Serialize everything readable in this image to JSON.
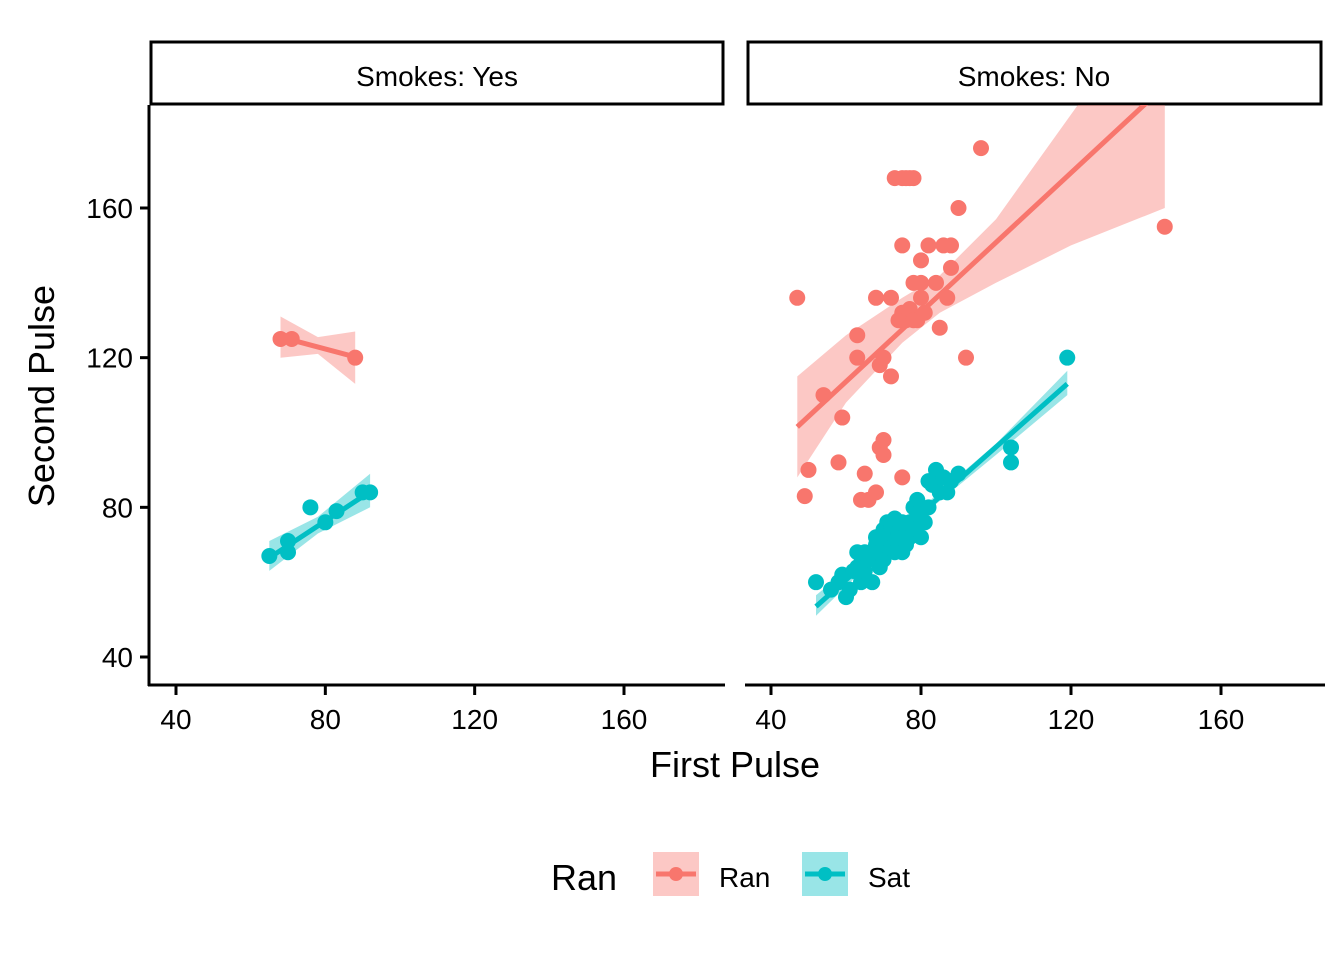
{
  "chart_data": {
    "type": "scatter",
    "xlabel": "First Pulse",
    "ylabel": "Second Pulse",
    "xlim": [
      33.5,
      184
    ],
    "ylim": [
      33.5,
      187
    ],
    "xticks": [
      40,
      80,
      120,
      160
    ],
    "yticks": [
      40,
      80,
      120,
      160
    ],
    "legend": {
      "title": "Ran",
      "position": "bottom",
      "entries": [
        {
          "label": "Ran",
          "color": "#F8766D"
        },
        {
          "label": "Sat",
          "color": "#00BFC4"
        }
      ]
    },
    "panels": [
      {
        "strip": "Smokes: Yes",
        "series": [
          {
            "group": "Ran",
            "color": "#F8766D",
            "points": [
              [
                68,
                125
              ],
              [
                71,
                125
              ],
              [
                88,
                120
              ]
            ],
            "fit": {
              "x": [
                68,
                88
              ],
              "y": [
                125.5,
                120.2
              ]
            },
            "band": {
              "x": [
                68,
                78,
                88
              ],
              "lower": [
                120.0,
                121.0,
                113.0
              ],
              "upper": [
                131.0,
                125.5,
                127.0
              ]
            }
          },
          {
            "group": "Sat",
            "color": "#00BFC4",
            "points": [
              [
                65,
                67
              ],
              [
                70,
                68
              ],
              [
                70,
                71
              ],
              [
                76,
                80
              ],
              [
                80,
                76
              ],
              [
                83,
                79
              ],
              [
                90,
                84
              ],
              [
                92,
                84
              ]
            ],
            "fit": {
              "x": [
                65,
                92
              ],
              "y": [
                66.5,
                84.2
              ]
            },
            "band": {
              "x": [
                65,
                78,
                92
              ],
              "lower": [
                63.0,
                73.0,
                80.0
              ],
              "upper": [
                71.0,
                77.5,
                89.0
              ]
            }
          }
        ]
      },
      {
        "strip": "Smokes: No",
        "series": [
          {
            "group": "Ran",
            "color": "#F8766D",
            "points": [
              [
                47,
                136
              ],
              [
                49,
                83
              ],
              [
                50,
                90
              ],
              [
                54,
                110
              ],
              [
                58,
                92
              ],
              [
                59,
                104
              ],
              [
                63,
                126
              ],
              [
                63,
                120
              ],
              [
                64,
                82
              ],
              [
                65,
                89
              ],
              [
                66,
                82
              ],
              [
                68,
                136
              ],
              [
                68,
                84
              ],
              [
                69,
                118
              ],
              [
                69,
                96
              ],
              [
                70,
                120
              ],
              [
                70,
                98
              ],
              [
                70,
                94
              ],
              [
                72,
                115
              ],
              [
                72,
                136
              ],
              [
                73,
                168
              ],
              [
                74,
                130
              ],
              [
                75,
                168
              ],
              [
                75,
                150
              ],
              [
                75,
                132
              ],
              [
                75,
                88
              ],
              [
                76,
                168
              ],
              [
                76,
                130
              ],
              [
                77,
                168
              ],
              [
                77,
                133
              ],
              [
                78,
                140
              ],
              [
                78,
                168
              ],
              [
                78,
                130
              ],
              [
                79,
                130
              ],
              [
                80,
                146
              ],
              [
                80,
                140
              ],
              [
                80,
                136
              ],
              [
                81,
                132
              ],
              [
                82,
                150
              ],
              [
                84,
                140
              ],
              [
                85,
                128
              ],
              [
                86,
                150
              ],
              [
                87,
                136
              ],
              [
                88,
                150
              ],
              [
                88,
                144
              ],
              [
                90,
                160
              ],
              [
                92,
                120
              ],
              [
                96,
                176
              ],
              [
                145,
                155
              ]
            ],
            "fit": {
              "x": [
                47,
                140
              ],
              "y": [
                101.5,
                188.0
              ]
            },
            "band": {
              "x": [
                47,
                60,
                75,
                85,
                100,
                120,
                145
              ],
              "lower": [
                88.0,
                108.0,
                124.0,
                132.0,
                140.0,
                150.0,
                160.0
              ],
              "upper": [
                115.0,
                126.0,
                136.0,
                142.0,
                157.0,
                185.0,
                220.0
              ]
            }
          },
          {
            "group": "Sat",
            "color": "#00BFC4",
            "points": [
              [
                52,
                60
              ],
              [
                56,
                58
              ],
              [
                58,
                60
              ],
              [
                59,
                62
              ],
              [
                60,
                56
              ],
              [
                61,
                58
              ],
              [
                62,
                63
              ],
              [
                63,
                64
              ],
              [
                63,
                68
              ],
              [
                64,
                60
              ],
              [
                64,
                65
              ],
              [
                65,
                63
              ],
              [
                65,
                68
              ],
              [
                66,
                66
              ],
              [
                67,
                60
              ],
              [
                67,
                68
              ],
              [
                68,
                70
              ],
              [
                68,
                72
              ],
              [
                69,
                64
              ],
              [
                69,
                68
              ],
              [
                70,
                66
              ],
              [
                70,
                70
              ],
              [
                70,
                74
              ],
              [
                71,
                72
              ],
              [
                71,
                76
              ],
              [
                72,
                70
              ],
              [
                72,
                75
              ],
              [
                73,
                68
              ],
              [
                73,
                72
              ],
              [
                73,
                77
              ],
              [
                74,
                70
              ],
              [
                74,
                73
              ],
              [
                75,
                68
              ],
              [
                75,
                72
              ],
              [
                75,
                76
              ],
              [
                76,
                70
              ],
              [
                76,
                74
              ],
              [
                77,
                72
              ],
              [
                77,
                76
              ],
              [
                78,
                74
              ],
              [
                78,
                80
              ],
              [
                79,
                78
              ],
              [
                79,
                82
              ],
              [
                80,
                72
              ],
              [
                80,
                76
              ],
              [
                80,
                80
              ],
              [
                81,
                76
              ],
              [
                82,
                80
              ],
              [
                82,
                87
              ],
              [
                83,
                86
              ],
              [
                84,
                90
              ],
              [
                85,
                84
              ],
              [
                86,
                88
              ],
              [
                87,
                84
              ],
              [
                88,
                87
              ],
              [
                90,
                89
              ],
              [
                104,
                92
              ],
              [
                104,
                96
              ],
              [
                119,
                120
              ]
            ],
            "fit": {
              "x": [
                52,
                119
              ],
              "y": [
                53.5,
                113.0
              ]
            },
            "band": {
              "x": [
                52,
                75,
                100,
                119
              ],
              "lower": [
                51.0,
                73.5,
                94.0,
                110.0
              ],
              "upper": [
                56.5,
                75.5,
                97.0,
                116.5
              ]
            }
          }
        ]
      }
    ]
  }
}
